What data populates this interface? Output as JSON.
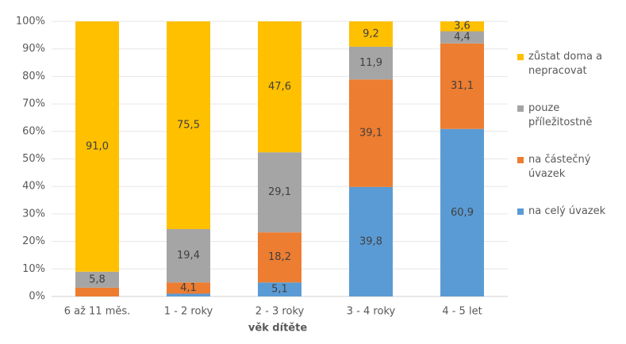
{
  "chart_data": {
    "type": "stacked_bar_100",
    "x_label": "věk dítěte",
    "categories": [
      "6 až 11 měs.",
      "1 - 2 roky",
      "2 - 3 roky",
      "3 - 4 roky",
      "4 - 5 let"
    ],
    "series": [
      {
        "name": "na celý úvazek",
        "color": "#5b9bd5",
        "values": [
          0,
          1.0,
          5.1,
          39.8,
          60.9
        ],
        "value_labels": [
          null,
          null,
          "5,1",
          "39,8",
          "60,9"
        ]
      },
      {
        "name": "na částečný úvazek",
        "color": "#ed7d31",
        "values": [
          3.2,
          4.1,
          18.2,
          39.1,
          31.1
        ],
        "value_labels": [
          null,
          "4,1",
          "18,2",
          "39,1",
          "31,1"
        ]
      },
      {
        "name": "pouze příležitostně",
        "color": "#a5a5a5",
        "values": [
          5.8,
          19.4,
          29.1,
          11.9,
          4.4
        ],
        "value_labels": [
          "5,8",
          "19,4",
          "29,1",
          "11,9",
          "4,4"
        ]
      },
      {
        "name": "zůstat doma a nepracovat",
        "color": "#ffc000",
        "values": [
          91.0,
          75.5,
          47.6,
          9.2,
          3.6
        ],
        "value_labels": [
          "91,0",
          "75,5",
          "47,6",
          "9,2",
          "3,6"
        ]
      }
    ],
    "ylim": [
      0,
      100
    ],
    "yticks": [
      {
        "value": 0,
        "label": "0%"
      },
      {
        "value": 10,
        "label": "10%"
      },
      {
        "value": 20,
        "label": "20%"
      },
      {
        "value": 30,
        "label": "30%"
      },
      {
        "value": 40,
        "label": "40%"
      },
      {
        "value": 50,
        "label": "50%"
      },
      {
        "value": 60,
        "label": "60%"
      },
      {
        "value": 70,
        "label": "70%"
      },
      {
        "value": 80,
        "label": "80%"
      },
      {
        "value": 90,
        "label": "90%"
      },
      {
        "value": 100,
        "label": "100%"
      }
    ],
    "grid": true,
    "legend": "right"
  }
}
